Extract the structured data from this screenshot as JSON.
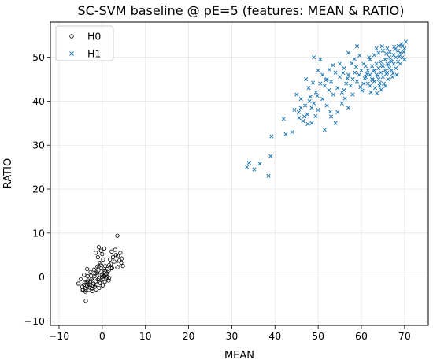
{
  "chart_data": {
    "type": "scatter",
    "title": "SC-SVM baseline @ pE=5  (features: MEAN & RATIO)",
    "xlabel": "MEAN",
    "ylabel": "RATIO",
    "xlim": [
      -12,
      75.5
    ],
    "ylim": [
      -11,
      58
    ],
    "xticks": [
      -10,
      0,
      10,
      20,
      30,
      40,
      50,
      60,
      70
    ],
    "yticks": [
      -10,
      0,
      10,
      20,
      30,
      40,
      50
    ],
    "grid": true,
    "legend_position": "top-left",
    "series": [
      {
        "name": "H0",
        "marker": "circle-open",
        "color": "#000000",
        "points": [
          [
            -3.2,
            -1.5
          ],
          [
            -2.5,
            -0.5
          ],
          [
            -1.8,
            0.2
          ],
          [
            -1.2,
            1.0
          ],
          [
            -0.5,
            0.5
          ],
          [
            0.3,
            1.2
          ],
          [
            1.0,
            0.8
          ],
          [
            -4.0,
            -2.5
          ],
          [
            -3.5,
            -2.0
          ],
          [
            -2.8,
            -1.2
          ],
          [
            -2.2,
            -0.8
          ],
          [
            -1.5,
            -1.0
          ],
          [
            -0.8,
            -0.3
          ],
          [
            0.0,
            0.0
          ],
          [
            0.8,
            0.5
          ],
          [
            1.5,
            1.5
          ],
          [
            -4.5,
            -3.0
          ],
          [
            -3.8,
            -2.8
          ],
          [
            -3.0,
            -1.8
          ],
          [
            -2.0,
            -1.5
          ],
          [
            -1.0,
            -0.6
          ],
          [
            0.5,
            0.2
          ],
          [
            1.2,
            1.8
          ],
          [
            2.0,
            2.0
          ],
          [
            -3.3,
            -0.8
          ],
          [
            -2.6,
            0.3
          ],
          [
            -1.6,
            0.8
          ],
          [
            -0.9,
            1.5
          ],
          [
            -0.2,
            2.0
          ],
          [
            0.6,
            1.3
          ],
          [
            -4.2,
            -1.8
          ],
          [
            -3.6,
            -1.1
          ],
          [
            -2.9,
            -2.4
          ],
          [
            -2.1,
            -2.0
          ],
          [
            -1.3,
            -1.7
          ],
          [
            -0.6,
            -1.2
          ],
          [
            0.2,
            -0.5
          ],
          [
            1.1,
            0.1
          ],
          [
            -3.9,
            -3.3
          ],
          [
            -3.1,
            -2.9
          ],
          [
            -2.4,
            -2.6
          ],
          [
            -1.7,
            -2.2
          ],
          [
            -0.4,
            -1.4
          ],
          [
            0.9,
            -0.2
          ],
          [
            -4.6,
            -2.2
          ],
          [
            -4.1,
            -1.3
          ],
          [
            -3.4,
            0.2
          ],
          [
            -2.7,
            1.1
          ],
          [
            -1.9,
            1.7
          ],
          [
            -1.1,
            2.4
          ],
          [
            -0.3,
            2.8
          ],
          [
            0.7,
            2.5
          ],
          [
            1.6,
            2.7
          ],
          [
            -2.3,
            -3.2
          ],
          [
            -1.4,
            -2.8
          ],
          [
            -0.7,
            -2.5
          ],
          [
            0.1,
            -1.9
          ],
          [
            0.4,
            0.9
          ],
          [
            -1.5,
            2.2
          ],
          [
            -0.1,
            0.6
          ],
          [
            3.2,
            5.0
          ],
          [
            4.5,
            4.2
          ],
          [
            3.8,
            3.0
          ],
          [
            2.5,
            4.5
          ],
          [
            4.8,
            2.5
          ],
          [
            3.5,
            2.2
          ],
          [
            2.8,
            3.5
          ],
          [
            4.2,
            5.5
          ],
          [
            1.8,
            4.0
          ],
          [
            2.2,
            5.8
          ],
          [
            3.0,
            6.2
          ],
          [
            4.0,
            3.8
          ],
          [
            3.6,
            4.8
          ],
          [
            2.0,
            3.0
          ],
          [
            4.4,
            3.3
          ],
          [
            -0.5,
            3.2
          ],
          [
            -1.0,
            4.5
          ],
          [
            0.0,
            5.2
          ],
          [
            -0.3,
            6.0
          ],
          [
            -1.5,
            5.5
          ],
          [
            0.5,
            6.5
          ],
          [
            -0.8,
            6.8
          ],
          [
            0.2,
            4.0
          ],
          [
            -4.5,
            -2.8
          ],
          [
            -5.0,
            -0.5
          ],
          [
            -4.2,
            0.5
          ],
          [
            -5.5,
            -1.5
          ],
          [
            -3.5,
            1.8
          ],
          [
            3.5,
            9.4
          ],
          [
            -3.8,
            -5.4
          ],
          [
            1.5,
            -0.8
          ],
          [
            0.6,
            -1.1
          ],
          [
            2.3,
            2.0
          ],
          [
            1.6,
            -0.2
          ]
        ]
      },
      {
        "name": "H1",
        "marker": "x",
        "color": "#1f77b4",
        "points": [
          [
            34.0,
            26.0
          ],
          [
            35.2,
            24.5
          ],
          [
            33.5,
            25.0
          ],
          [
            36.5,
            25.8
          ],
          [
            38.5,
            23.0
          ],
          [
            39.0,
            27.5
          ],
          [
            39.2,
            32.0
          ],
          [
            42.5,
            32.5
          ],
          [
            44.0,
            33.0
          ],
          [
            45.5,
            37.5
          ],
          [
            46.5,
            35.5
          ],
          [
            47.0,
            39.0
          ],
          [
            47.5,
            37.0
          ],
          [
            48.0,
            40.0
          ],
          [
            48.5,
            38.5
          ],
          [
            46.0,
            40.5
          ],
          [
            45.0,
            41.5
          ],
          [
            44.5,
            38.0
          ],
          [
            46.8,
            36.5
          ],
          [
            47.8,
            43.0
          ],
          [
            48.2,
            41.0
          ],
          [
            49.0,
            39.5
          ],
          [
            49.5,
            42.0
          ],
          [
            50.0,
            38.0
          ],
          [
            50.5,
            44.0
          ],
          [
            51.0,
            40.5
          ],
          [
            51.5,
            43.5
          ],
          [
            52.0,
            45.0
          ],
          [
            52.5,
            42.5
          ],
          [
            53.0,
            44.5
          ],
          [
            53.5,
            41.5
          ],
          [
            54.0,
            46.5
          ],
          [
            54.5,
            43.0
          ],
          [
            55.0,
            45.5
          ],
          [
            55.5,
            42.0
          ],
          [
            56.0,
            47.5
          ],
          [
            56.5,
            44.0
          ],
          [
            57.0,
            46.0
          ],
          [
            57.5,
            43.5
          ],
          [
            58.0,
            45.0
          ],
          [
            58.5,
            46.5
          ],
          [
            59.0,
            44.5
          ],
          [
            59.5,
            46.0
          ],
          [
            60.0,
            47.0
          ],
          [
            49.0,
            50.0
          ],
          [
            50.5,
            49.5
          ],
          [
            51.0,
            46.0
          ],
          [
            55.0,
            48.5
          ],
          [
            57.0,
            51.0
          ],
          [
            59.0,
            52.5
          ],
          [
            60.5,
            44.0
          ],
          [
            55.5,
            39.5
          ],
          [
            53.0,
            36.5
          ],
          [
            54.0,
            35.0
          ],
          [
            57.0,
            38.5
          ],
          [
            51.5,
            33.5
          ],
          [
            48.5,
            35.0
          ],
          [
            46.0,
            38.5
          ],
          [
            42.0,
            36.0
          ],
          [
            50.0,
            47.0
          ],
          [
            52.0,
            39.0
          ],
          [
            56.0,
            42.5
          ],
          [
            58.0,
            41.5
          ],
          [
            54.5,
            37.5
          ],
          [
            61.0,
            45.5
          ],
          [
            61.5,
            47.0
          ],
          [
            62.0,
            46.0
          ],
          [
            62.5,
            48.0
          ],
          [
            63.0,
            47.0
          ],
          [
            63.5,
            48.5
          ],
          [
            64.0,
            47.5
          ],
          [
            64.5,
            49.0
          ],
          [
            65.0,
            48.0
          ],
          [
            65.5,
            49.5
          ],
          [
            66.0,
            48.5
          ],
          [
            66.5,
            50.0
          ],
          [
            67.0,
            49.0
          ],
          [
            67.5,
            50.5
          ],
          [
            68.0,
            50.0
          ],
          [
            68.5,
            51.5
          ],
          [
            69.0,
            51.0
          ],
          [
            69.5,
            52.5
          ],
          [
            70.0,
            52.0
          ],
          [
            70.3,
            53.5
          ],
          [
            61.5,
            44.0
          ],
          [
            62.0,
            43.5
          ],
          [
            62.5,
            45.0
          ],
          [
            63.0,
            44.5
          ],
          [
            63.5,
            46.0
          ],
          [
            64.0,
            45.0
          ],
          [
            64.5,
            46.5
          ],
          [
            65.0,
            45.5
          ],
          [
            65.5,
            47.0
          ],
          [
            66.0,
            46.5
          ],
          [
            66.5,
            47.5
          ],
          [
            67.0,
            47.0
          ],
          [
            67.5,
            48.5
          ],
          [
            68.0,
            47.5
          ],
          [
            68.5,
            49.0
          ],
          [
            69.0,
            48.5
          ],
          [
            69.5,
            50.0
          ],
          [
            70.0,
            49.5
          ],
          [
            62.2,
            42.0
          ],
          [
            63.2,
            43.0
          ],
          [
            64.2,
            43.5
          ],
          [
            65.2,
            44.0
          ],
          [
            66.2,
            45.0
          ],
          [
            67.2,
            45.5
          ],
          [
            68.2,
            46.0
          ],
          [
            61.0,
            48.0
          ],
          [
            62.0,
            49.5
          ],
          [
            63.0,
            50.5
          ],
          [
            64.0,
            51.0
          ],
          [
            65.0,
            51.5
          ],
          [
            66.0,
            52.0
          ],
          [
            64.8,
            52.5
          ],
          [
            60.5,
            48.5
          ],
          [
            61.8,
            50.0
          ],
          [
            63.5,
            52.0
          ],
          [
            62.8,
            46.8
          ],
          [
            64.8,
            48.2
          ],
          [
            66.8,
            49.2
          ],
          [
            68.8,
            50.2
          ],
          [
            65.8,
            50.8
          ],
          [
            67.8,
            51.8
          ],
          [
            69.3,
            53.0
          ],
          [
            63.8,
            45.8
          ],
          [
            65.8,
            46.2
          ],
          [
            64.3,
            44.2
          ],
          [
            62.6,
            44.8
          ],
          [
            66.3,
            48.3
          ],
          [
            67.3,
            46.3
          ],
          [
            61.3,
            46.2
          ],
          [
            60.8,
            45.2
          ],
          [
            68.6,
            52.6
          ],
          [
            69.8,
            51.2
          ],
          [
            67.6,
            52.4
          ],
          [
            66.6,
            51.2
          ],
          [
            65.6,
            43.4
          ],
          [
            64.6,
            42.6
          ],
          [
            63.6,
            41.8
          ],
          [
            59.8,
            43.2
          ],
          [
            60.2,
            42.4
          ],
          [
            58.8,
            47.8
          ],
          [
            57.8,
            48.6
          ],
          [
            56.8,
            45.2
          ],
          [
            55.8,
            46.4
          ],
          [
            58.4,
            49.6
          ],
          [
            59.6,
            50.4
          ],
          [
            53.4,
            48.2
          ],
          [
            52.6,
            47.2
          ],
          [
            51.8,
            44.8
          ],
          [
            49.8,
            41.2
          ],
          [
            48.8,
            44.2
          ],
          [
            47.2,
            45.0
          ],
          [
            49.4,
            36.6
          ],
          [
            47.6,
            34.8
          ],
          [
            45.6,
            36.2
          ],
          [
            52.8,
            37.6
          ],
          [
            56.2,
            40.6
          ]
        ]
      }
    ]
  }
}
